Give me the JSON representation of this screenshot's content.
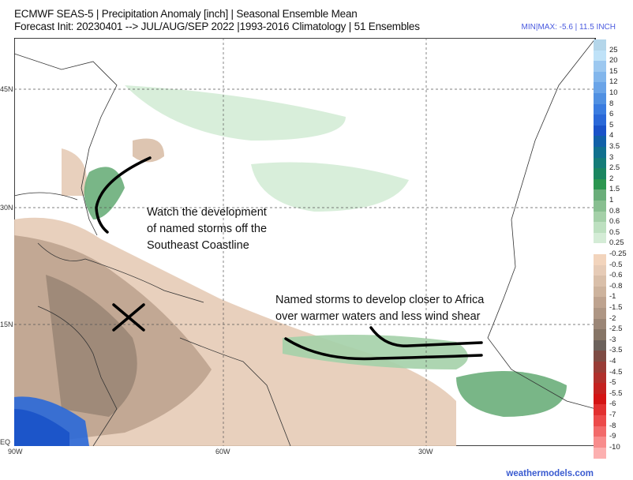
{
  "header": {
    "title_line1": "ECMWF SEAS-5 | Precipitation Anomaly [inch] | Seasonal Ensemble Mean",
    "title_line2": "Forecast Init: 20230401 --> JUL/AUG/SEP 2022  |1993-2016 Climatology | 51 Ensembles",
    "minmax": "MIN|MAX: -5.6 | 11.5 INCH"
  },
  "map": {
    "lat_labels": [
      "45N",
      "30N",
      "15N",
      "EQ"
    ],
    "lon_labels": [
      "90W",
      "60W",
      "30W"
    ],
    "annotations": [
      {
        "lines": [
          "Watch the development",
          "of named storms off the",
          "Southeast Coastline"
        ]
      },
      {
        "lines": [
          "Named storms to develop closer to Africa",
          "over warmer waters and less wind shear"
        ]
      }
    ],
    "marker": "X"
  },
  "colorbar": {
    "labels": [
      "25",
      "20",
      "15",
      "12",
      "10",
      "8",
      "6",
      "5",
      "4",
      "3.5",
      "3",
      "2.5",
      "2",
      "1.5",
      "1",
      "0.8",
      "0.6",
      "0.5",
      "0.25",
      "-0.25",
      "-0.5",
      "-0.6",
      "-0.8",
      "-1",
      "-1.5",
      "-2",
      "-2.5",
      "-3",
      "-3.5",
      "-4",
      "-4.5",
      "-5",
      "-5.5",
      "-6",
      "-7",
      "-8",
      "-9",
      "-10"
    ],
    "colors": [
      "#b4d6ea",
      "#bfe2f8",
      "#9cc8f0",
      "#82b6ec",
      "#6aa4e8",
      "#5090e2",
      "#3a7ce0",
      "#2a68d8",
      "#1a52c8",
      "#1160a8",
      "#10708e",
      "#147c78",
      "#1a8660",
      "#2c9650",
      "#6aae7a",
      "#88bf90",
      "#a4d0a8",
      "#bde0c0",
      "#d4ecd6",
      "#ffffff",
      "#f2d4bc",
      "#e6cbb6",
      "#d9bfa9",
      "#cdb39d",
      "#bea38f",
      "#ae9684",
      "#9b8676",
      "#867566",
      "#6c625c",
      "#7e4c44",
      "#983c36",
      "#b0302c",
      "#c42220",
      "#d41414",
      "#e23030",
      "#ec4a4a",
      "#f26a6a",
      "#f88c8c",
      "#fcb0b0"
    ]
  },
  "credit": "weathermodels.com"
}
